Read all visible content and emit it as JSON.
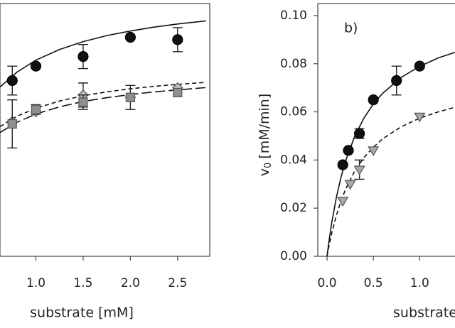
{
  "chart_data": [
    {
      "type": "scatter",
      "x_label": "substrate [mM]",
      "xlim": [
        0.62,
        2.84
      ],
      "ylim": [
        0,
        0.105
      ],
      "xticks": [
        {
          "value": 1.0,
          "label": "1.0"
        },
        {
          "value": 1.5,
          "label": "1.5"
        },
        {
          "value": 2.0,
          "label": "2.0"
        },
        {
          "value": 2.5,
          "label": "2.5"
        }
      ],
      "series": [
        {
          "marker": "circle",
          "color": "#111111",
          "x": [
            0.75,
            1.0,
            1.5,
            2.0,
            2.5
          ],
          "values": [
            0.073,
            0.079,
            0.083,
            0.091,
            0.09
          ],
          "errors": [
            0.006,
            null,
            0.005,
            null,
            0.005
          ]
        },
        {
          "marker": "diamond",
          "color": "#bdbdbd",
          "x": [
            0.75,
            1.0,
            1.5,
            2.0,
            2.5
          ],
          "values": [
            0.056,
            0.06,
            0.067,
            0.066,
            0.07
          ],
          "errors": [
            null,
            null,
            0.005,
            0.005,
            null
          ]
        },
        {
          "marker": "square",
          "color": "#8f8f8f",
          "x": [
            0.75,
            1.0,
            1.5,
            2.0,
            2.5
          ],
          "values": [
            0.055,
            0.061,
            0.064,
            0.066,
            0.068
          ],
          "errors": [
            0.01,
            0.002,
            0.003,
            null,
            null
          ]
        }
      ],
      "fits": [
        {
          "style": "solid",
          "x": [
            0.62,
            0.8,
            1.0,
            1.25,
            1.5,
            1.75,
            2.0,
            2.25,
            2.5,
            2.8
          ],
          "values": [
            0.0703,
            0.0765,
            0.0815,
            0.0859,
            0.0892,
            0.0917,
            0.0936,
            0.0952,
            0.0965,
            0.0978
          ]
        },
        {
          "style": "dashed",
          "x": [
            0.62,
            0.8,
            1.0,
            1.25,
            1.5,
            1.75,
            2.0,
            2.25,
            2.5,
            2.8
          ],
          "values": [
            0.0539,
            0.0582,
            0.0615,
            0.0645,
            0.0667,
            0.0683,
            0.0696,
            0.0706,
            0.0714,
            0.0723
          ]
        },
        {
          "style": "long-dashed",
          "x": [
            0.62,
            0.8,
            1.0,
            1.25,
            1.5,
            1.75,
            2.0,
            2.25,
            2.5,
            2.8
          ],
          "values": [
            0.0514,
            0.0557,
            0.0591,
            0.0621,
            0.0643,
            0.0659,
            0.0672,
            0.0683,
            0.0691,
            0.0701
          ]
        }
      ]
    },
    {
      "type": "scatter",
      "label": "b)",
      "x_label": "substrate [mM]",
      "y_label": {
        "main": "v",
        "sub": "0",
        "unit": "[mM/min]"
      },
      "xlim": [
        -0.1,
        1.42
      ],
      "ylim": [
        0,
        0.105
      ],
      "xticks": [
        {
          "value": 0,
          "label": "0.0"
        },
        {
          "value": 0.5,
          "label": "0.5"
        },
        {
          "value": 1.0,
          "label": "1.0"
        }
      ],
      "yticks": [
        {
          "value": 0,
          "label": "0.00"
        },
        {
          "value": 0.02,
          "label": "0.02"
        },
        {
          "value": 0.04,
          "label": "0.04"
        },
        {
          "value": 0.06,
          "label": "0.06"
        },
        {
          "value": 0.08,
          "label": "0.08"
        },
        {
          "value": 0.1,
          "label": "0.10"
        }
      ],
      "series": [
        {
          "marker": "circle",
          "color": "#111111",
          "x": [
            0.17,
            0.23,
            0.35,
            0.5,
            0.75,
            1.0
          ],
          "values": [
            0.038,
            0.044,
            0.051,
            0.065,
            0.073,
            0.079
          ],
          "errors": [
            null,
            null,
            0.002,
            null,
            0.006,
            null
          ]
        },
        {
          "marker": "triangle-down",
          "color": "#a8a8a8",
          "x": [
            0.17,
            0.25,
            0.35,
            0.5,
            1.0
          ],
          "values": [
            0.023,
            0.03,
            0.036,
            0.044,
            0.058
          ],
          "errors": [
            null,
            null,
            0.004,
            null,
            null
          ]
        }
      ],
      "fits": [
        {
          "style": "solid",
          "x": [
            0,
            0.02,
            0.05,
            0.1,
            0.15,
            0.2,
            0.3,
            0.4,
            0.5,
            0.6,
            0.8,
            1.0,
            1.2,
            1.38
          ],
          "values": [
            0,
            0.006,
            0.0138,
            0.0244,
            0.0328,
            0.0396,
            0.05,
            0.0575,
            0.0633,
            0.0677,
            0.0743,
            0.0789,
            0.0824,
            0.0847
          ]
        },
        {
          "style": "dashed",
          "x": [
            0,
            0.02,
            0.05,
            0.1,
            0.15,
            0.2,
            0.3,
            0.4,
            0.5,
            0.6,
            0.8,
            1.0,
            1.2,
            1.38
          ],
          "values": [
            0,
            0.0041,
            0.0095,
            0.017,
            0.0229,
            0.0279,
            0.0355,
            0.0411,
            0.0453,
            0.0488,
            0.0538,
            0.0574,
            0.06,
            0.0619
          ]
        }
      ]
    }
  ]
}
